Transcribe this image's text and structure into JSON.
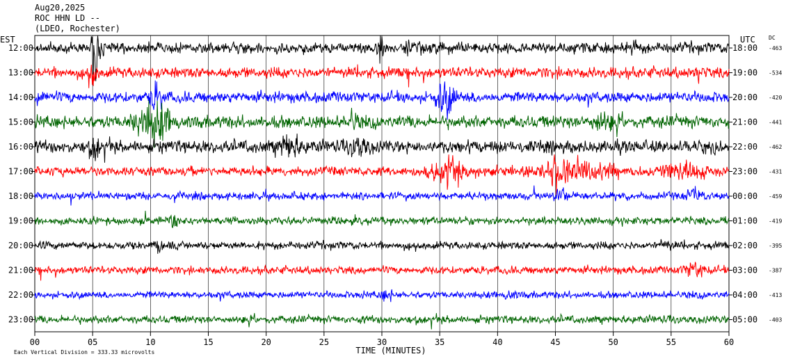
{
  "header": {
    "date": "Aug20,2025",
    "station": "ROC HHN LD --",
    "network": "(LDEO, Rochester)"
  },
  "axis_labels": {
    "left_tz": "EST",
    "right_tz": "UTC",
    "right_col": "DC",
    "xlabel": "TIME (MINUTES)",
    "footer": "Each Vertical Division =  333.33 microvolts"
  },
  "chart_data": {
    "type": "line",
    "title": "ROC HHN LD --",
    "xlabel": "TIME (MINUTES)",
    "xlim": [
      0,
      60
    ],
    "x_ticks": [
      "00",
      "05",
      "10",
      "15",
      "20",
      "25",
      "30",
      "35",
      "40",
      "45",
      "50",
      "55",
      "60"
    ],
    "grid": "vertical lines every 5 minutes",
    "trace_colors": [
      "#000000",
      "#ff0000",
      "#0000ff",
      "#006400"
    ],
    "rows": [
      {
        "est": "12:00",
        "utc": "18:00",
        "dc": "-463"
      },
      {
        "est": "13:00",
        "utc": "19:00",
        "dc": "-534"
      },
      {
        "est": "14:00",
        "utc": "20:00",
        "dc": "-420"
      },
      {
        "est": "15:00",
        "utc": "21:00",
        "dc": "-441"
      },
      {
        "est": "16:00",
        "utc": "22:00",
        "dc": "-462"
      },
      {
        "est": "17:00",
        "utc": "23:00",
        "dc": "-431"
      },
      {
        "est": "18:00",
        "utc": "00:00",
        "dc": "-459"
      },
      {
        "est": "19:00",
        "utc": "01:00",
        "dc": "-419"
      },
      {
        "est": "20:00",
        "utc": "02:00",
        "dc": "-395"
      },
      {
        "est": "21:00",
        "utc": "03:00",
        "dc": "-387"
      },
      {
        "est": "22:00",
        "utc": "04:00",
        "dc": "-413"
      },
      {
        "est": "23:00",
        "utc": "05:00",
        "dc": "-403"
      }
    ]
  }
}
